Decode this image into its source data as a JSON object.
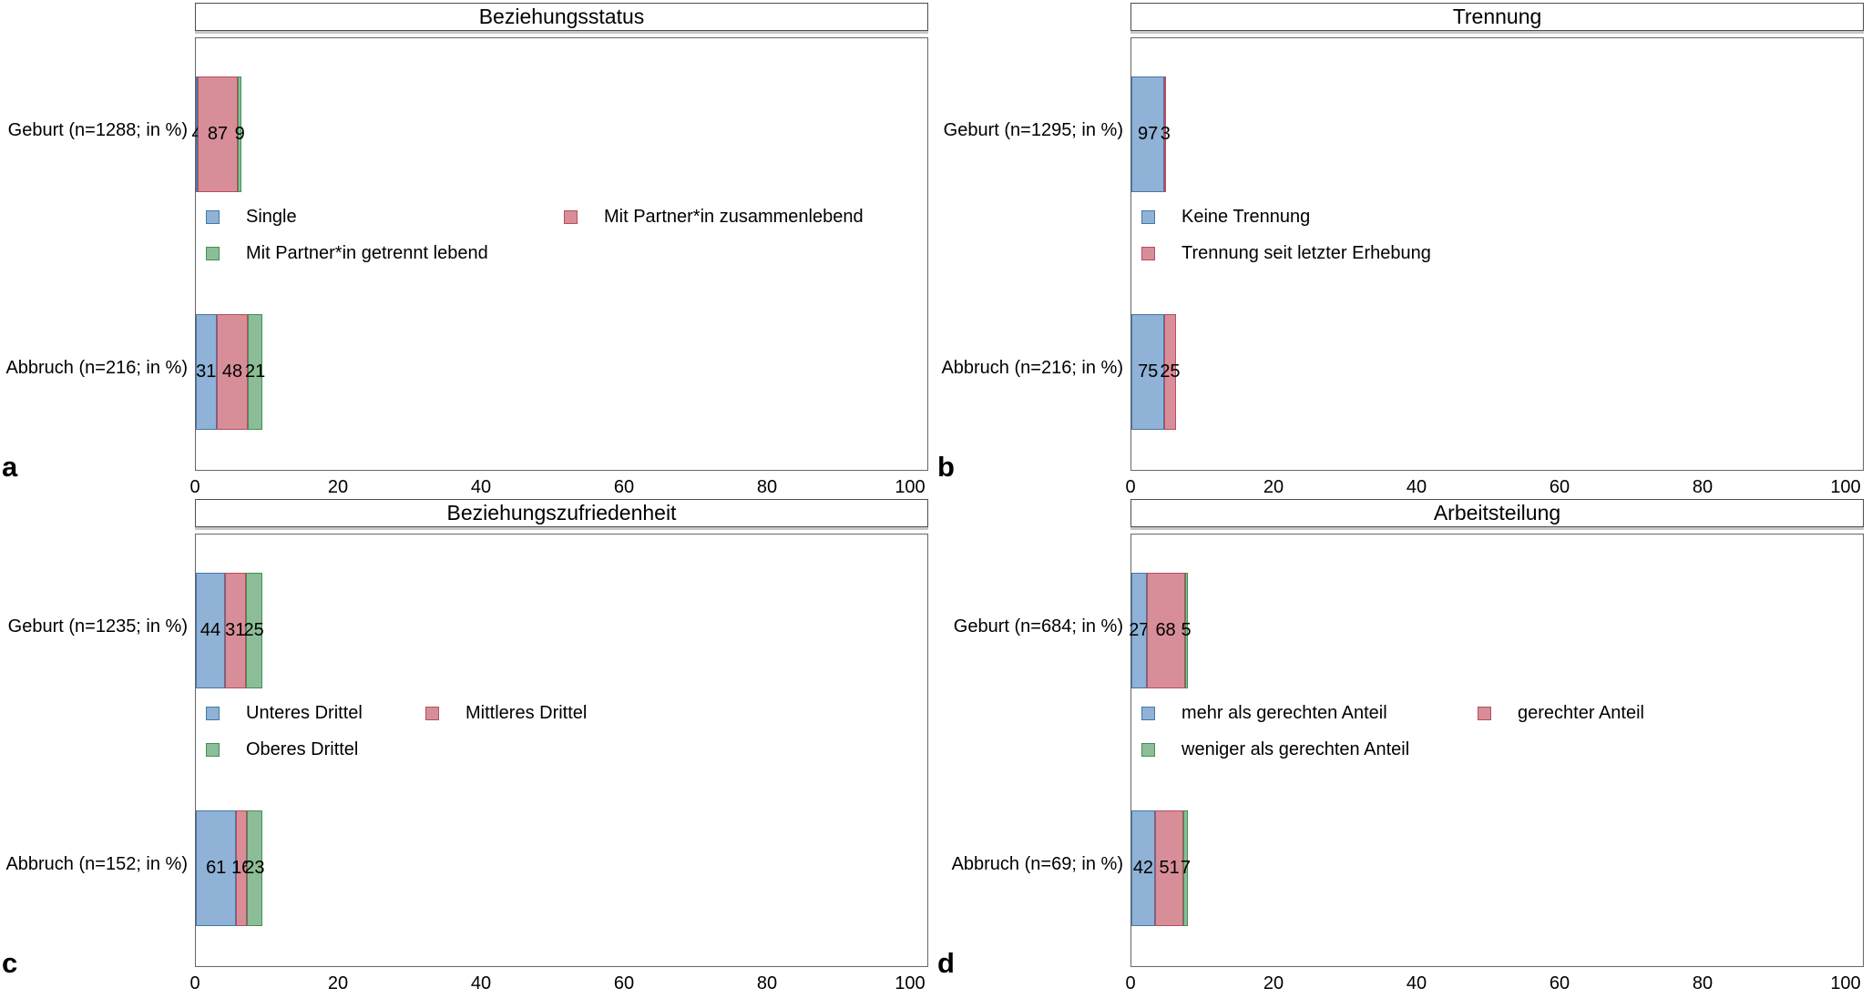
{
  "chart_data": [
    {
      "type": "bar",
      "orientation": "horizontal",
      "stacked": true,
      "panel_label": "a",
      "title": "Beziehungsstatus",
      "categories": [
        "Geburt (n=1288; in %)",
        "Abbruch (n=216; in %)"
      ],
      "series": [
        {
          "name": "Single",
          "fill": "#8FB2D6",
          "border": "#4577A8",
          "values": [
            4,
            31
          ]
        },
        {
          "name": "Mit Partner*in zusammenlebend",
          "fill": "#D88E98",
          "border": "#B94C5C",
          "values": [
            87,
            48
          ]
        },
        {
          "name": "Mit Partner*in getrennt lebend",
          "fill": "#8CBD98",
          "border": "#3F9152",
          "values": [
            9,
            21
          ]
        }
      ],
      "xlim": [
        0,
        100
      ],
      "xticks": [
        0,
        20,
        40,
        60,
        80,
        100
      ],
      "xlabel": "",
      "ylabel": "",
      "grid": false,
      "legend_position": "inside, between bars, two columns"
    },
    {
      "type": "bar",
      "orientation": "horizontal",
      "stacked": true,
      "panel_label": "b",
      "title": "Trennung",
      "categories": [
        "Geburt (n=1295; in %)",
        "Abbruch (n=216; in %)"
      ],
      "series": [
        {
          "name": "Keine Trennung",
          "fill": "#8FB2D6",
          "border": "#4577A8",
          "values": [
            97,
            75
          ]
        },
        {
          "name": "Trennung seit letzter Erhebung",
          "fill": "#D88E98",
          "border": "#B94C5C",
          "values": [
            3,
            25
          ]
        }
      ],
      "xlim": [
        0,
        100
      ],
      "xticks": [
        0,
        20,
        40,
        60,
        80,
        100
      ],
      "xlabel": "",
      "ylabel": "",
      "grid": false,
      "legend_position": "inside, between bars, one column"
    },
    {
      "type": "bar",
      "orientation": "horizontal",
      "stacked": true,
      "panel_label": "c",
      "title": "Beziehungszufriedenheit",
      "categories": [
        "Geburt (n=1235; in %)",
        "Abbruch (n=152; in %)"
      ],
      "series": [
        {
          "name": "Unteres Drittel",
          "fill": "#8FB2D6",
          "border": "#4577A8",
          "values": [
            44,
            61
          ]
        },
        {
          "name": "Mittleres Drittel",
          "fill": "#D88E98",
          "border": "#B94C5C",
          "values": [
            31,
            16
          ]
        },
        {
          "name": "Oberes Drittel",
          "fill": "#8CBD98",
          "border": "#3F9152",
          "values": [
            25,
            23
          ]
        }
      ],
      "xlim": [
        0,
        100
      ],
      "xticks": [
        0,
        20,
        40,
        60,
        80,
        100
      ],
      "xlabel": "",
      "ylabel": "",
      "grid": false,
      "legend_position": "inside, between bars, two columns"
    },
    {
      "type": "bar",
      "orientation": "horizontal",
      "stacked": true,
      "panel_label": "d",
      "title": "Arbeitsteilung",
      "categories": [
        "Geburt (n=684; in %)",
        "Abbruch (n=69; in %)"
      ],
      "series": [
        {
          "name": "mehr als gerechten Anteil",
          "fill": "#8FB2D6",
          "border": "#4577A8",
          "values": [
            27,
            42
          ]
        },
        {
          "name": "gerechter Anteil",
          "fill": "#D88E98",
          "border": "#B94C5C",
          "values": [
            68,
            51
          ]
        },
        {
          "name": "weniger als gerechten Anteil",
          "fill": "#8CBD98",
          "border": "#3F9152",
          "values": [
            5,
            7
          ]
        }
      ],
      "xlim": [
        0,
        100
      ],
      "xticks": [
        0,
        20,
        40,
        60,
        80,
        100
      ],
      "xlabel": "",
      "ylabel": "",
      "grid": false,
      "legend_position": "inside, between bars, two columns"
    }
  ]
}
